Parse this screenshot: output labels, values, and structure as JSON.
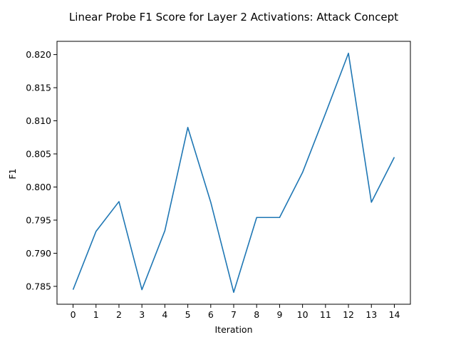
{
  "chart_data": {
    "type": "line",
    "title": "Linear Probe F1 Score for Layer 2 Activations: Attack Concept",
    "xlabel": "Iteration",
    "ylabel": "F1",
    "x": [
      0,
      1,
      2,
      3,
      4,
      5,
      6,
      7,
      8,
      9,
      10,
      11,
      12,
      13,
      14
    ],
    "series": [
      {
        "values": [
          0.7845,
          0.7933,
          0.7978,
          0.7845,
          0.7934,
          0.809,
          0.7977,
          0.7841,
          0.7954,
          0.7954,
          0.8022,
          0.8111,
          0.8202,
          0.7977,
          0.8045
        ]
      }
    ],
    "xlim": [
      -0.7,
      14.7
    ],
    "ylim": [
      0.7823,
      0.822
    ],
    "xticks": [
      "0",
      "1",
      "2",
      "3",
      "4",
      "5",
      "6",
      "7",
      "8",
      "9",
      "10",
      "11",
      "12",
      "13",
      "14"
    ],
    "yticks": [
      0.785,
      0.79,
      0.795,
      0.8,
      0.805,
      0.81,
      0.815,
      0.82
    ],
    "ytick_labels": [
      "0.785",
      "0.790",
      "0.795",
      "0.800",
      "0.805",
      "0.810",
      "0.815",
      "0.820"
    ],
    "grid": false,
    "legend": "none",
    "colors": {
      "line": "#1f77b4",
      "axes": "#000000",
      "background": "#ffffff"
    }
  }
}
